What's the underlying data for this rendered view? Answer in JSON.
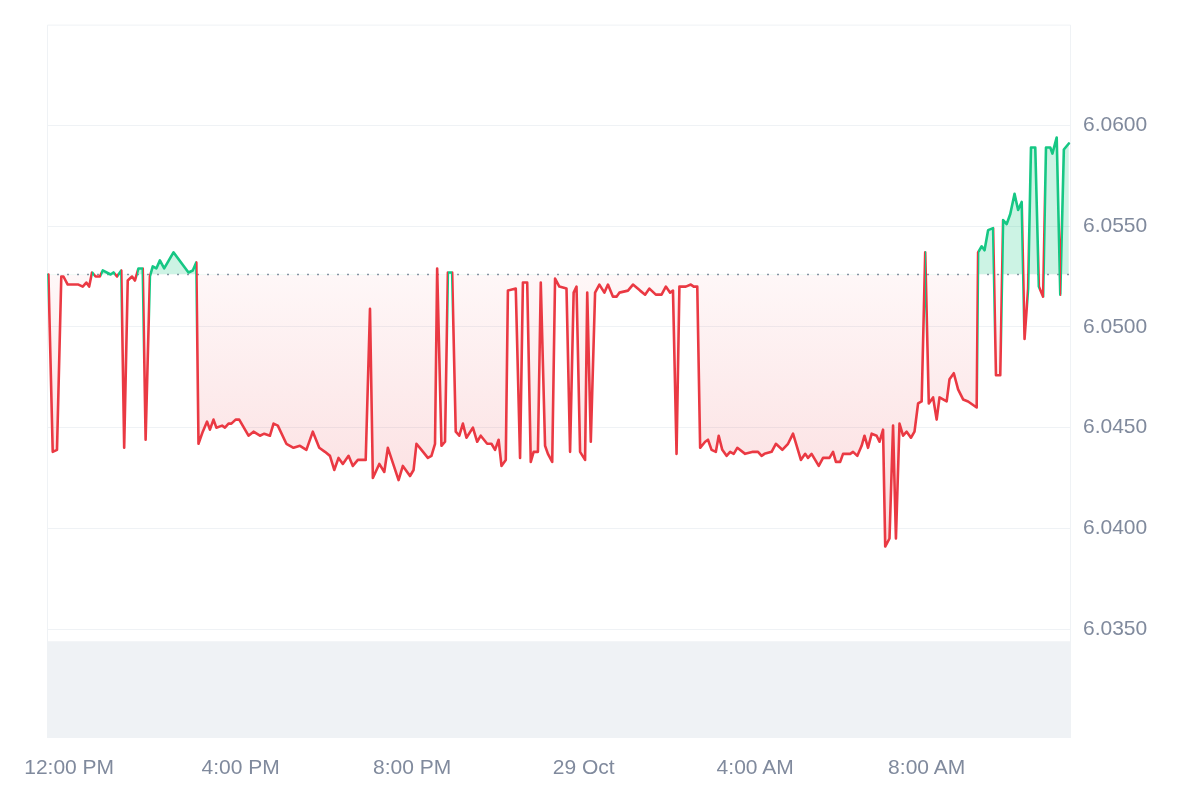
{
  "chart_data": {
    "type": "area",
    "x": [
      "--10-28T11:31",
      "--10-28T11:37",
      "--10-28T11:43",
      "--10-28T11:49",
      "--10-28T11:52",
      "--10-28T11:58",
      "--10-28T12:13",
      "--10-28T12:19",
      "--10-28T12:24",
      "--10-28T12:28",
      "--10-28T12:32",
      "--10-28T12:37",
      "--10-28T12:43",
      "--10-28T12:47",
      "--10-28T12:58",
      "--10-28T13:02",
      "--10-28T13:07",
      "--10-28T13:13",
      "--10-28T13:17",
      "--10-28T13:22",
      "--10-28T13:28",
      "--10-28T13:32",
      "--10-28T13:37",
      "--10-28T13:43",
      "--10-28T13:47",
      "--10-28T13:53",
      "--10-28T13:57",
      "--10-28T14:02",
      "--10-28T14:07",
      "--10-28T14:13",
      "--10-28T14:26",
      "--10-28T14:47",
      "--10-28T14:53",
      "--10-28T14:58",
      "--10-28T15:01",
      "--10-28T15:07",
      "--10-28T15:13",
      "--10-28T15:17",
      "--10-28T15:22",
      "--10-28T15:26",
      "--10-28T15:34",
      "--10-28T15:38",
      "--10-28T15:43",
      "--10-28T15:47",
      "--10-28T15:53",
      "--10-28T15:58",
      "--10-28T16:11",
      "--10-28T16:18",
      "--10-28T16:27",
      "--10-28T16:33",
      "--10-28T16:41",
      "--10-28T16:46",
      "--10-28T16:52",
      "--10-28T17:04",
      "--10-28T17:14",
      "--10-28T17:23",
      "--10-28T17:32",
      "--10-28T17:41",
      "--10-28T17:50",
      "--10-28T17:58",
      "--10-28T18:05",
      "--10-28T18:11",
      "--10-28T18:17",
      "--10-28T18:23",
      "--10-28T18:31",
      "--10-28T18:37",
      "--10-28T18:44",
      "--10-28T18:55",
      "--10-28T19:01",
      "--10-28T19:05",
      "--10-28T19:14",
      "--10-28T19:21",
      "--10-28T19:26",
      "--10-28T19:41",
      "--10-28T19:47",
      "--10-28T19:57",
      "--10-28T20:02",
      "--10-28T20:06",
      "--10-28T20:13",
      "--10-28T20:22",
      "--10-28T20:27",
      "--10-28T20:32",
      "--10-28T20:35",
      "--10-28T20:41",
      "--10-28T20:46",
      "--10-28T20:50",
      "--10-28T20:56",
      "--10-28T21:01",
      "--10-28T21:06",
      "--10-28T21:11",
      "--10-28T21:16",
      "--10-28T21:25",
      "--10-28T21:31",
      "--10-28T21:36",
      "--10-28T21:45",
      "--10-28T21:51",
      "--10-28T21:56",
      "--10-28T22:01",
      "--10-28T22:05",
      "--10-28T22:11",
      "--10-28T22:14",
      "--10-28T22:25",
      "--10-28T22:31",
      "--10-28T22:35",
      "--10-28T22:41",
      "--10-28T22:46",
      "--10-28T22:50",
      "--10-28T22:56",
      "--10-28T23:00",
      "--10-28T23:06",
      "--10-28T23:10",
      "--10-28T23:16",
      "--10-28T23:20",
      "--10-28T23:26",
      "--10-28T23:36",
      "--10-28T23:41",
      "--10-28T23:46",
      "--10-28T23:50",
      "--10-28T23:55",
      "--10-29T00:02",
      "--10-29T00:05",
      "--10-29T00:10",
      "--10-29T00:16",
      "--10-29T00:22",
      "--10-29T00:29",
      "--10-29T00:34",
      "--10-29T00:41",
      "--10-29T00:46",
      "--10-29T00:50",
      "--10-29T01:02",
      "--10-29T01:09",
      "--10-29T01:19",
      "--10-29T01:26",
      "--10-29T01:32",
      "--10-29T01:41",
      "--10-29T01:49",
      "--10-29T01:55",
      "--10-29T02:01",
      "--10-29T02:05",
      "--10-29T02:10",
      "--10-29T02:14",
      "--10-29T02:23",
      "--10-29T02:30",
      "--10-29T02:34",
      "--10-29T02:39",
      "--10-29T02:43",
      "--10-29T02:50",
      "--10-29T02:54",
      "--10-29T02:59",
      "--10-29T03:05",
      "--10-29T03:09",
      "--10-29T03:14",
      "--10-29T03:20",
      "--10-29T03:25",
      "--10-29T03:30",
      "--10-29T03:35",
      "--10-29T03:46",
      "--10-29T03:57",
      "--10-29T04:04",
      "--10-29T04:09",
      "--10-29T04:13",
      "--10-29T04:23",
      "--10-29T04:29",
      "--10-29T04:38",
      "--10-29T04:46",
      "--10-29T04:53",
      "--10-29T05:04",
      "--10-29T05:10",
      "--10-29T05:14",
      "--10-29T05:19",
      "--10-29T05:29",
      "--10-29T05:35",
      "--10-29T05:44",
      "--10-29T05:49",
      "--10-29T05:53",
      "--10-29T05:59",
      "--10-29T06:03",
      "--10-29T06:13",
      "--10-29T06:17",
      "--10-29T06:23",
      "--10-29T06:29",
      "--10-29T06:33",
      "--10-29T06:38",
      "--10-29T06:43",
      "--10-29T06:50",
      "--10-29T06:54",
      "--10-29T06:59",
      "--10-29T07:02",
      "--10-29T07:08",
      "--10-29T07:13",
      "--10-29T07:17",
      "--10-29T07:22",
      "--10-29T07:27",
      "--10-29T07:32",
      "--10-29T07:38",
      "--10-29T07:43",
      "--10-29T07:48",
      "--10-29T07:53",
      "--10-29T07:58",
      "--10-29T08:03",
      "--10-29T08:09",
      "--10-29T08:14",
      "--10-29T08:18",
      "--10-29T08:28",
      "--10-29T08:32",
      "--10-29T08:38",
      "--10-29T08:44",
      "--10-29T08:51",
      "--10-29T08:58",
      "--10-29T09:10",
      "--10-29T09:12",
      "--10-29T09:17",
      "--10-29T09:21",
      "--10-29T09:26",
      "--10-29T09:33",
      "--10-29T09:37",
      "--10-29T09:43",
      "--10-29T09:47",
      "--10-29T09:52",
      "--10-29T09:57",
      "--10-29T10:03",
      "--10-29T10:08",
      "--10-29T10:13",
      "--10-29T10:17",
      "--10-29T10:22",
      "--10-29T10:26",
      "--10-29T10:32",
      "--10-29T10:37",
      "--10-29T10:43",
      "--10-29T10:47",
      "--10-29T10:53",
      "--10-29T10:56",
      "--10-29T11:02",
      "--10-29T11:07",
      "--10-29T11:12",
      "--10-29T11:19"
    ],
    "series": [
      {
        "values": [
          6.0526,
          6.0438,
          6.0439,
          6.0525,
          6.0525,
          6.0521,
          6.0521,
          6.052,
          6.0522,
          6.052,
          6.0527,
          6.0525,
          6.0525,
          6.0528,
          6.0526,
          6.0527,
          6.0525,
          6.0528,
          6.044,
          6.0523,
          6.0525,
          6.0523,
          6.0529,
          6.0529,
          6.0444,
          6.0525,
          6.053,
          6.0529,
          6.0533,
          6.0529,
          6.0537,
          6.0527,
          6.0528,
          6.0532,
          6.0442,
          6.0448,
          6.0453,
          6.0449,
          6.0454,
          6.045,
          6.0451,
          6.045,
          6.0452,
          6.0452,
          6.0454,
          6.0454,
          6.0446,
          6.0448,
          6.0446,
          6.0447,
          6.0446,
          6.0452,
          6.0451,
          6.0442,
          6.044,
          6.0441,
          6.0439,
          6.0448,
          6.044,
          6.0438,
          6.0436,
          6.0429,
          6.0435,
          6.0432,
          6.0436,
          6.0431,
          6.0434,
          6.0434,
          6.0509,
          6.0425,
          6.0432,
          6.0428,
          6.044,
          6.0424,
          6.0431,
          6.0426,
          6.0429,
          6.0442,
          6.0439,
          6.0435,
          6.0436,
          6.0442,
          6.0529,
          6.0441,
          6.0443,
          6.0527,
          6.0527,
          6.0448,
          6.0446,
          6.0452,
          6.0445,
          6.045,
          6.0443,
          6.0446,
          6.0442,
          6.0442,
          6.0439,
          6.0444,
          6.0431,
          6.0434,
          6.0518,
          6.0519,
          6.0435,
          6.0522,
          6.0522,
          6.0433,
          6.0438,
          6.0438,
          6.0522,
          6.0441,
          6.0437,
          6.0433,
          6.0524,
          6.052,
          6.0519,
          6.0438,
          6.0517,
          6.052,
          6.0438,
          6.0434,
          6.0517,
          6.0443,
          6.0517,
          6.0521,
          6.0517,
          6.0521,
          6.0515,
          6.0515,
          6.0517,
          6.0518,
          6.0521,
          6.0518,
          6.0516,
          6.0519,
          6.0516,
          6.0516,
          6.052,
          6.0517,
          6.0518,
          6.0437,
          6.052,
          6.052,
          6.0521,
          6.052,
          6.052,
          6.044,
          6.0443,
          6.0444,
          6.0439,
          6.0438,
          6.0446,
          6.0439,
          6.0436,
          6.0438,
          6.0437,
          6.044,
          6.0437,
          6.0438,
          6.0438,
          6.0436,
          6.0437,
          6.0438,
          6.0442,
          6.0439,
          6.0442,
          6.0447,
          6.0434,
          6.0437,
          6.0435,
          6.0437,
          6.0431,
          6.0435,
          6.0435,
          6.0438,
          6.0433,
          6.0433,
          6.0437,
          6.0437,
          6.0438,
          6.0436,
          6.0441,
          6.0446,
          6.044,
          6.0447,
          6.0446,
          6.0443,
          6.0449,
          6.0391,
          6.0395,
          6.0451,
          6.0395,
          6.0452,
          6.0446,
          6.0448,
          6.0445,
          6.0448,
          6.0462,
          6.0463,
          6.0537,
          6.0462,
          6.0465,
          6.0454,
          6.0465,
          6.0463,
          6.0474,
          6.0477,
          6.0469,
          6.0464,
          6.0463,
          6.046,
          6.0537,
          6.054,
          6.0538,
          6.0548,
          6.0549,
          6.0476,
          6.0476,
          6.0553,
          6.0551,
          6.0556,
          6.0566,
          6.0558,
          6.0562,
          6.0494,
          6.0519,
          6.0589,
          6.0589,
          6.052,
          6.0515,
          6.0589,
          6.0589,
          6.0586,
          6.0594,
          6.0516,
          6.0588,
          6.0591
        ],
        "colors": [
          "#16c784",
          "#ea3943",
          "#ea3943",
          "#ea3943",
          "#ea3943",
          "#ea3943",
          "#ea3943",
          "#ea3943",
          "#ea3943",
          "#ea3943",
          "#16c784",
          "#ea3943",
          "#ea3943",
          "#16c784",
          "#16c784",
          "#16c784",
          "#ea3943",
          "#16c784",
          "#ea3943",
          "#ea3943",
          "#ea3943",
          "#ea3943",
          "#16c784",
          "#16c784",
          "#ea3943",
          "#ea3943",
          "#16c784",
          "#16c784",
          "#16c784",
          "#16c784",
          "#16c784",
          "#16c784",
          "#16c784",
          "#16c784",
          "#ea3943",
          "#ea3943",
          "#ea3943",
          "#ea3943",
          "#ea3943",
          "#ea3943",
          "#ea3943",
          "#ea3943",
          "#ea3943",
          "#ea3943",
          "#ea3943",
          "#ea3943",
          "#ea3943",
          "#ea3943",
          "#ea3943",
          "#ea3943",
          "#ea3943",
          "#ea3943",
          "#ea3943",
          "#ea3943",
          "#ea3943",
          "#ea3943",
          "#ea3943",
          "#ea3943",
          "#ea3943",
          "#ea3943",
          "#ea3943",
          "#ea3943",
          "#ea3943",
          "#ea3943",
          "#ea3943",
          "#ea3943",
          "#ea3943",
          "#ea3943",
          "#ea3943",
          "#ea3943",
          "#ea3943",
          "#ea3943",
          "#ea3943",
          "#ea3943",
          "#ea3943",
          "#ea3943",
          "#ea3943",
          "#ea3943",
          "#ea3943",
          "#ea3943",
          "#ea3943",
          "#ea3943",
          "#16c784",
          "#ea3943",
          "#ea3943",
          "#16c784",
          "#16c784",
          "#ea3943",
          "#ea3943",
          "#ea3943",
          "#ea3943",
          "#ea3943",
          "#ea3943",
          "#ea3943",
          "#ea3943",
          "#ea3943",
          "#ea3943",
          "#ea3943",
          "#ea3943",
          "#ea3943",
          "#ea3943",
          "#ea3943",
          "#ea3943",
          "#ea3943",
          "#ea3943",
          "#ea3943",
          "#ea3943",
          "#ea3943",
          "#ea3943",
          "#ea3943",
          "#ea3943",
          "#ea3943",
          "#ea3943",
          "#ea3943",
          "#ea3943",
          "#ea3943",
          "#ea3943",
          "#ea3943",
          "#ea3943",
          "#ea3943",
          "#ea3943",
          "#ea3943",
          "#ea3943",
          "#ea3943",
          "#ea3943",
          "#ea3943",
          "#ea3943",
          "#ea3943",
          "#ea3943",
          "#ea3943",
          "#ea3943",
          "#ea3943",
          "#ea3943",
          "#ea3943",
          "#ea3943",
          "#ea3943",
          "#ea3943",
          "#ea3943",
          "#ea3943",
          "#ea3943",
          "#ea3943",
          "#ea3943",
          "#ea3943",
          "#ea3943",
          "#ea3943",
          "#ea3943",
          "#ea3943",
          "#ea3943",
          "#ea3943",
          "#ea3943",
          "#ea3943",
          "#ea3943",
          "#ea3943",
          "#ea3943",
          "#ea3943",
          "#ea3943",
          "#ea3943",
          "#ea3943",
          "#ea3943",
          "#ea3943",
          "#ea3943",
          "#ea3943",
          "#ea3943",
          "#ea3943",
          "#ea3943",
          "#ea3943",
          "#ea3943",
          "#ea3943",
          "#ea3943",
          "#ea3943",
          "#ea3943",
          "#ea3943",
          "#ea3943",
          "#ea3943",
          "#ea3943",
          "#ea3943",
          "#ea3943",
          "#ea3943",
          "#ea3943",
          "#ea3943",
          "#ea3943",
          "#ea3943",
          "#ea3943",
          "#ea3943",
          "#ea3943",
          "#ea3943",
          "#ea3943",
          "#ea3943",
          "#ea3943",
          "#ea3943",
          "#ea3943",
          "#ea3943",
          "#ea3943",
          "#ea3943",
          "#ea3943",
          "#ea3943",
          "#ea3943",
          "#ea3943",
          "#16c784",
          "#ea3943",
          "#ea3943",
          "#ea3943",
          "#ea3943",
          "#ea3943",
          "#ea3943",
          "#ea3943",
          "#ea3943",
          "#ea3943",
          "#ea3943",
          "#ea3943",
          "#16c784",
          "#16c784",
          "#16c784",
          "#16c784",
          "#16c784",
          "#ea3943",
          "#ea3943",
          "#16c784",
          "#16c784",
          "#16c784",
          "#16c784",
          "#16c784",
          "#16c784",
          "#ea3943",
          "#ea3943",
          "#16c784",
          "#16c784",
          "#ea3943",
          "#ea3943",
          "#16c784",
          "#16c784",
          "#16c784",
          "#16c784",
          "#ea3943",
          "#16c784",
          "#16c784"
        ]
      }
    ],
    "xlim": [
      "--10-28T11:29",
      "--10-29T11:22"
    ],
    "xticks": [
      {
        "value": "--10-28T12:00",
        "label": "12:00 PM"
      },
      {
        "value": "--10-28T16:00",
        "label": "4:00 PM"
      },
      {
        "value": "--10-28T20:00",
        "label": "8:00 PM"
      },
      {
        "value": "--10-29T00:00",
        "label": "29 Oct"
      },
      {
        "value": "--10-29T04:00",
        "label": "4:00 AM"
      },
      {
        "value": "--10-29T08:00",
        "label": "8:00 AM"
      }
    ],
    "ylim": [
      6.0296,
      6.065
    ],
    "yticks": [
      {
        "value": 6.035,
        "label": "6.0350"
      },
      {
        "value": 6.04,
        "label": "6.0400"
      },
      {
        "value": 6.045,
        "label": "6.0450"
      },
      {
        "value": 6.05,
        "label": "6.0500"
      },
      {
        "value": 6.055,
        "label": "6.0550"
      },
      {
        "value": 6.06,
        "label": "6.0600"
      }
    ],
    "ref_lines": [
      {
        "axis": "y",
        "value": 6.0526,
        "color": "#8a93a6",
        "line_style": "dotted"
      }
    ],
    "bands": [
      {
        "axis": "y",
        "from": 6.0296,
        "to": 6.0344,
        "color": "#eff2f5"
      }
    ],
    "grid": "y",
    "marker": "none"
  }
}
